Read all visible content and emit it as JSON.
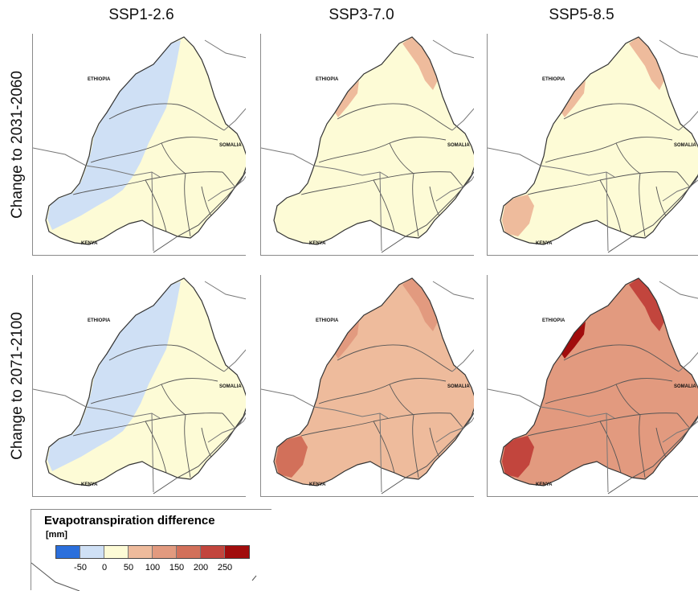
{
  "columns": [
    "SSP1-2.6",
    "SSP3-7.0",
    "SSP5-8.5"
  ],
  "rows": [
    "Change to 2031-2060",
    "Change to 2071-2100"
  ],
  "country_labels": [
    "ETHIOPIA",
    "SOMALIA",
    "KENYA"
  ],
  "legend": {
    "title": "Evapotranspiration difference",
    "unit": "[mm]",
    "colors": [
      "#2b6fdc",
      "#cfe0f5",
      "#fdfbd6",
      "#eebb9c",
      "#e29a7f",
      "#d2705a",
      "#c2453d",
      "#a10d0d"
    ],
    "ticks": [
      "-50",
      "0",
      "50",
      "100",
      "150",
      "200",
      "250"
    ]
  },
  "panels": [
    {
      "column": "SSP1-2.6",
      "row": "Change to 2031-2060",
      "dominant_class": "0 to -50 (blue) in west, 0-50 elsewhere"
    },
    {
      "column": "SSP3-7.0",
      "row": "Change to 2031-2060",
      "dominant_class": "0-50 with some 50-100 in north"
    },
    {
      "column": "SSP5-8.5",
      "row": "Change to 2031-2060",
      "dominant_class": "0-50 with 50-100 patches"
    },
    {
      "column": "SSP1-2.6",
      "row": "Change to 2071-2100",
      "dominant_class": "0 to -50 (blue) in west, 0-50 elsewhere"
    },
    {
      "column": "SSP3-7.0",
      "row": "Change to 2071-2100",
      "dominant_class": "50-150 widespread"
    },
    {
      "column": "SSP5-8.5",
      "row": "Change to 2071-2100",
      "dominant_class": "100-250 widespread"
    }
  ]
}
